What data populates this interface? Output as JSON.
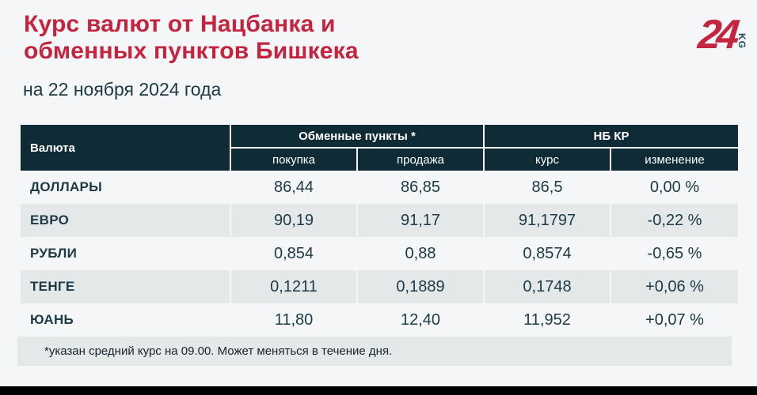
{
  "header": {
    "title_line1": "Курс валют от Нацбанка и",
    "title_line2": "обменных пунктов Бишкека",
    "date": "на 22 ноября 2024 года"
  },
  "logo": {
    "number": "24",
    "suffix": "KG"
  },
  "colors": {
    "accent_red": "#C5243F",
    "table_header_bg": "#0E2B36",
    "row_alt_bg": "#E5E8E9",
    "page_bg": "#F5F6F7",
    "text_dark": "#1C3A46"
  },
  "chart_data": {
    "type": "table",
    "title": "Курс валют от Нацбанка и обменных пунктов Бишкека",
    "subtitle": "на 22 ноября 2024 года",
    "header": {
      "currency": "Валюта",
      "group_exchange": "Обменные пункты *",
      "group_nbkr": "НБ КР",
      "buy": "покупка",
      "sell": "продажа",
      "rate": "курс",
      "change": "изменение"
    },
    "columns": [
      "Валюта",
      "покупка",
      "продажа",
      "курс",
      "изменение"
    ],
    "rows": [
      [
        "ДОЛЛАРЫ",
        "86,44",
        "86,85",
        "86,5",
        "0,00 %"
      ],
      [
        "ЕВРО",
        "90,19",
        "91,17",
        "91,1797",
        "-0,22 %"
      ],
      [
        "РУБЛИ",
        "0,854",
        "0,88",
        "0,8574",
        "-0,65 %"
      ],
      [
        "ТЕНГЕ",
        "0,1211",
        "0,1889",
        "0,1748",
        "+0,06 %"
      ],
      [
        "ЮАНЬ",
        "11,80",
        "12,40",
        "11,952",
        "+0,07 %"
      ]
    ],
    "footnote": "*указан средний курс на 09.00. Может меняться в течение дня."
  }
}
